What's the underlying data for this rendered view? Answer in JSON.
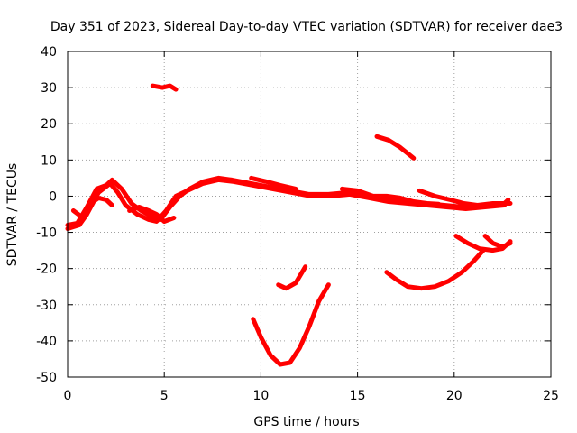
{
  "chart_data": {
    "type": "line",
    "title": "Day 351 of 2023, Sidereal Day-to-day VTEC variation (SDTVAR) for receiver dae3",
    "xlabel": "GPS time / hours",
    "ylabel": "SDTVAR / TECUs",
    "xlim": [
      0,
      25
    ],
    "ylim": [
      -50,
      40
    ],
    "xticks": [
      0,
      5,
      10,
      15,
      20,
      25
    ],
    "yticks": [
      -50,
      -40,
      -30,
      -20,
      -10,
      0,
      10,
      20,
      30,
      40
    ],
    "xtick_labels": [
      "0",
      "5",
      "10",
      "15",
      "20",
      "25"
    ],
    "ytick_labels": [
      "-50",
      "-40",
      "-30",
      "-20",
      "-10",
      "0",
      "10",
      "20",
      "30",
      "40"
    ],
    "grid": true,
    "series_color": "#ff0000",
    "series": [
      {
        "name": "main-a",
        "points": [
          [
            0,
            -8
          ],
          [
            0.5,
            -7.5
          ],
          [
            1,
            -3
          ],
          [
            1.5,
            2
          ],
          [
            2,
            3
          ],
          [
            2.3,
            4.5
          ],
          [
            2.8,
            2
          ],
          [
            3.3,
            -2
          ],
          [
            3.8,
            -4
          ],
          [
            4.3,
            -5.5
          ],
          [
            4.8,
            -6.5
          ],
          [
            5.3,
            -3
          ],
          [
            5.8,
            0
          ],
          [
            6.3,
            2
          ],
          [
            7,
            4
          ],
          [
            7.8,
            5
          ],
          [
            8.5,
            4.5
          ],
          [
            9.5,
            3.5
          ],
          [
            10.5,
            2.5
          ],
          [
            11.5,
            1.5
          ],
          [
            12.5,
            0.5
          ],
          [
            13.5,
            0.5
          ],
          [
            14.5,
            1
          ],
          [
            15.5,
            0
          ],
          [
            16.5,
            -1
          ],
          [
            17.5,
            -1.5
          ],
          [
            18.5,
            -2
          ],
          [
            19.5,
            -2.5
          ],
          [
            20.5,
            -3
          ],
          [
            21.5,
            -2.5
          ],
          [
            22.5,
            -2.5
          ],
          [
            22.8,
            -1
          ]
        ]
      },
      {
        "name": "main-b",
        "points": [
          [
            0,
            -9
          ],
          [
            0.6,
            -8
          ],
          [
            1,
            -5
          ],
          [
            1.6,
            1
          ],
          [
            2.2,
            3.5
          ],
          [
            2.6,
            1
          ],
          [
            3,
            -2.5
          ],
          [
            3.6,
            -5
          ],
          [
            4.2,
            -6.5
          ],
          [
            4.6,
            -7
          ],
          [
            5.1,
            -4
          ],
          [
            5.6,
            0
          ],
          [
            6.2,
            1.5
          ],
          [
            7,
            3.5
          ],
          [
            7.8,
            4.5
          ],
          [
            8.6,
            4
          ],
          [
            9.6,
            3
          ],
          [
            10.6,
            2
          ],
          [
            11.6,
            1
          ],
          [
            12.6,
            0
          ],
          [
            13.6,
            0
          ],
          [
            14.6,
            0.5
          ],
          [
            15.6,
            -0.5
          ],
          [
            16.6,
            -1.5
          ],
          [
            17.6,
            -2
          ],
          [
            18.6,
            -2.5
          ],
          [
            19.6,
            -3
          ],
          [
            20.6,
            -3.5
          ],
          [
            21.6,
            -3
          ],
          [
            22.6,
            -2.5
          ]
        ]
      },
      {
        "name": "main-c",
        "points": [
          [
            0.3,
            -4
          ],
          [
            0.8,
            -6
          ],
          [
            1.2,
            -2
          ],
          [
            1.6,
            -0.5
          ],
          [
            2,
            -1
          ],
          [
            2.3,
            -2.5
          ]
        ]
      },
      {
        "name": "main-d",
        "points": [
          [
            3.2,
            -4
          ],
          [
            3.7,
            -3
          ],
          [
            4.2,
            -4
          ],
          [
            4.6,
            -5
          ],
          [
            5,
            -7
          ],
          [
            5.5,
            -6
          ]
        ]
      },
      {
        "name": "main-e",
        "points": [
          [
            9.5,
            5
          ],
          [
            10.3,
            4
          ],
          [
            11,
            3
          ],
          [
            11.8,
            2
          ]
        ]
      },
      {
        "name": "main-f",
        "points": [
          [
            14.2,
            2
          ],
          [
            15,
            1.5
          ],
          [
            15.8,
            0
          ],
          [
            16.5,
            0
          ],
          [
            17.2,
            -0.5
          ],
          [
            17.9,
            -1.5
          ],
          [
            18.6,
            -2
          ],
          [
            19.2,
            -2.2
          ]
        ]
      },
      {
        "name": "main-g",
        "points": [
          [
            18.2,
            1.5
          ],
          [
            19,
            0
          ],
          [
            19.8,
            -1
          ],
          [
            20.5,
            -2
          ],
          [
            21.2,
            -2.5
          ],
          [
            22,
            -2
          ],
          [
            22.9,
            -2
          ]
        ]
      },
      {
        "name": "seg-30",
        "points": [
          [
            4.4,
            30.5
          ],
          [
            4.9,
            30
          ],
          [
            5.3,
            30.5
          ],
          [
            5.6,
            29.5
          ]
        ]
      },
      {
        "name": "seg-16",
        "points": [
          [
            16,
            16.5
          ],
          [
            16.6,
            15.5
          ],
          [
            17.2,
            13.5
          ],
          [
            17.9,
            10.5
          ]
        ]
      },
      {
        "name": "seg-25a",
        "points": [
          [
            10.9,
            -24.5
          ],
          [
            11.3,
            -25.5
          ],
          [
            11.8,
            -24
          ],
          [
            12.3,
            -19.5
          ]
        ]
      },
      {
        "name": "seg-U",
        "points": [
          [
            9.6,
            -34
          ],
          [
            10,
            -39
          ],
          [
            10.5,
            -44
          ],
          [
            11,
            -46.5
          ],
          [
            11.5,
            -46
          ],
          [
            12,
            -42
          ],
          [
            12.5,
            -36
          ],
          [
            13,
            -29
          ],
          [
            13.5,
            -24.5
          ]
        ]
      },
      {
        "name": "seg-21",
        "points": [
          [
            16.5,
            -21
          ],
          [
            17,
            -23
          ],
          [
            17.6,
            -25
          ],
          [
            18.3,
            -25.5
          ],
          [
            19,
            -25
          ],
          [
            19.7,
            -23.5
          ],
          [
            20.4,
            -21
          ],
          [
            21,
            -18
          ],
          [
            21.5,
            -15
          ]
        ]
      },
      {
        "name": "seg-right",
        "points": [
          [
            20.1,
            -11
          ],
          [
            20.7,
            -13
          ],
          [
            21.3,
            -14.5
          ],
          [
            22,
            -15
          ],
          [
            22.5,
            -14.5
          ],
          [
            22.9,
            -12.5
          ]
        ]
      },
      {
        "name": "seg-right-2",
        "points": [
          [
            21.6,
            -11
          ],
          [
            22,
            -13
          ],
          [
            22.5,
            -14
          ],
          [
            22.9,
            -13
          ]
        ]
      }
    ]
  }
}
